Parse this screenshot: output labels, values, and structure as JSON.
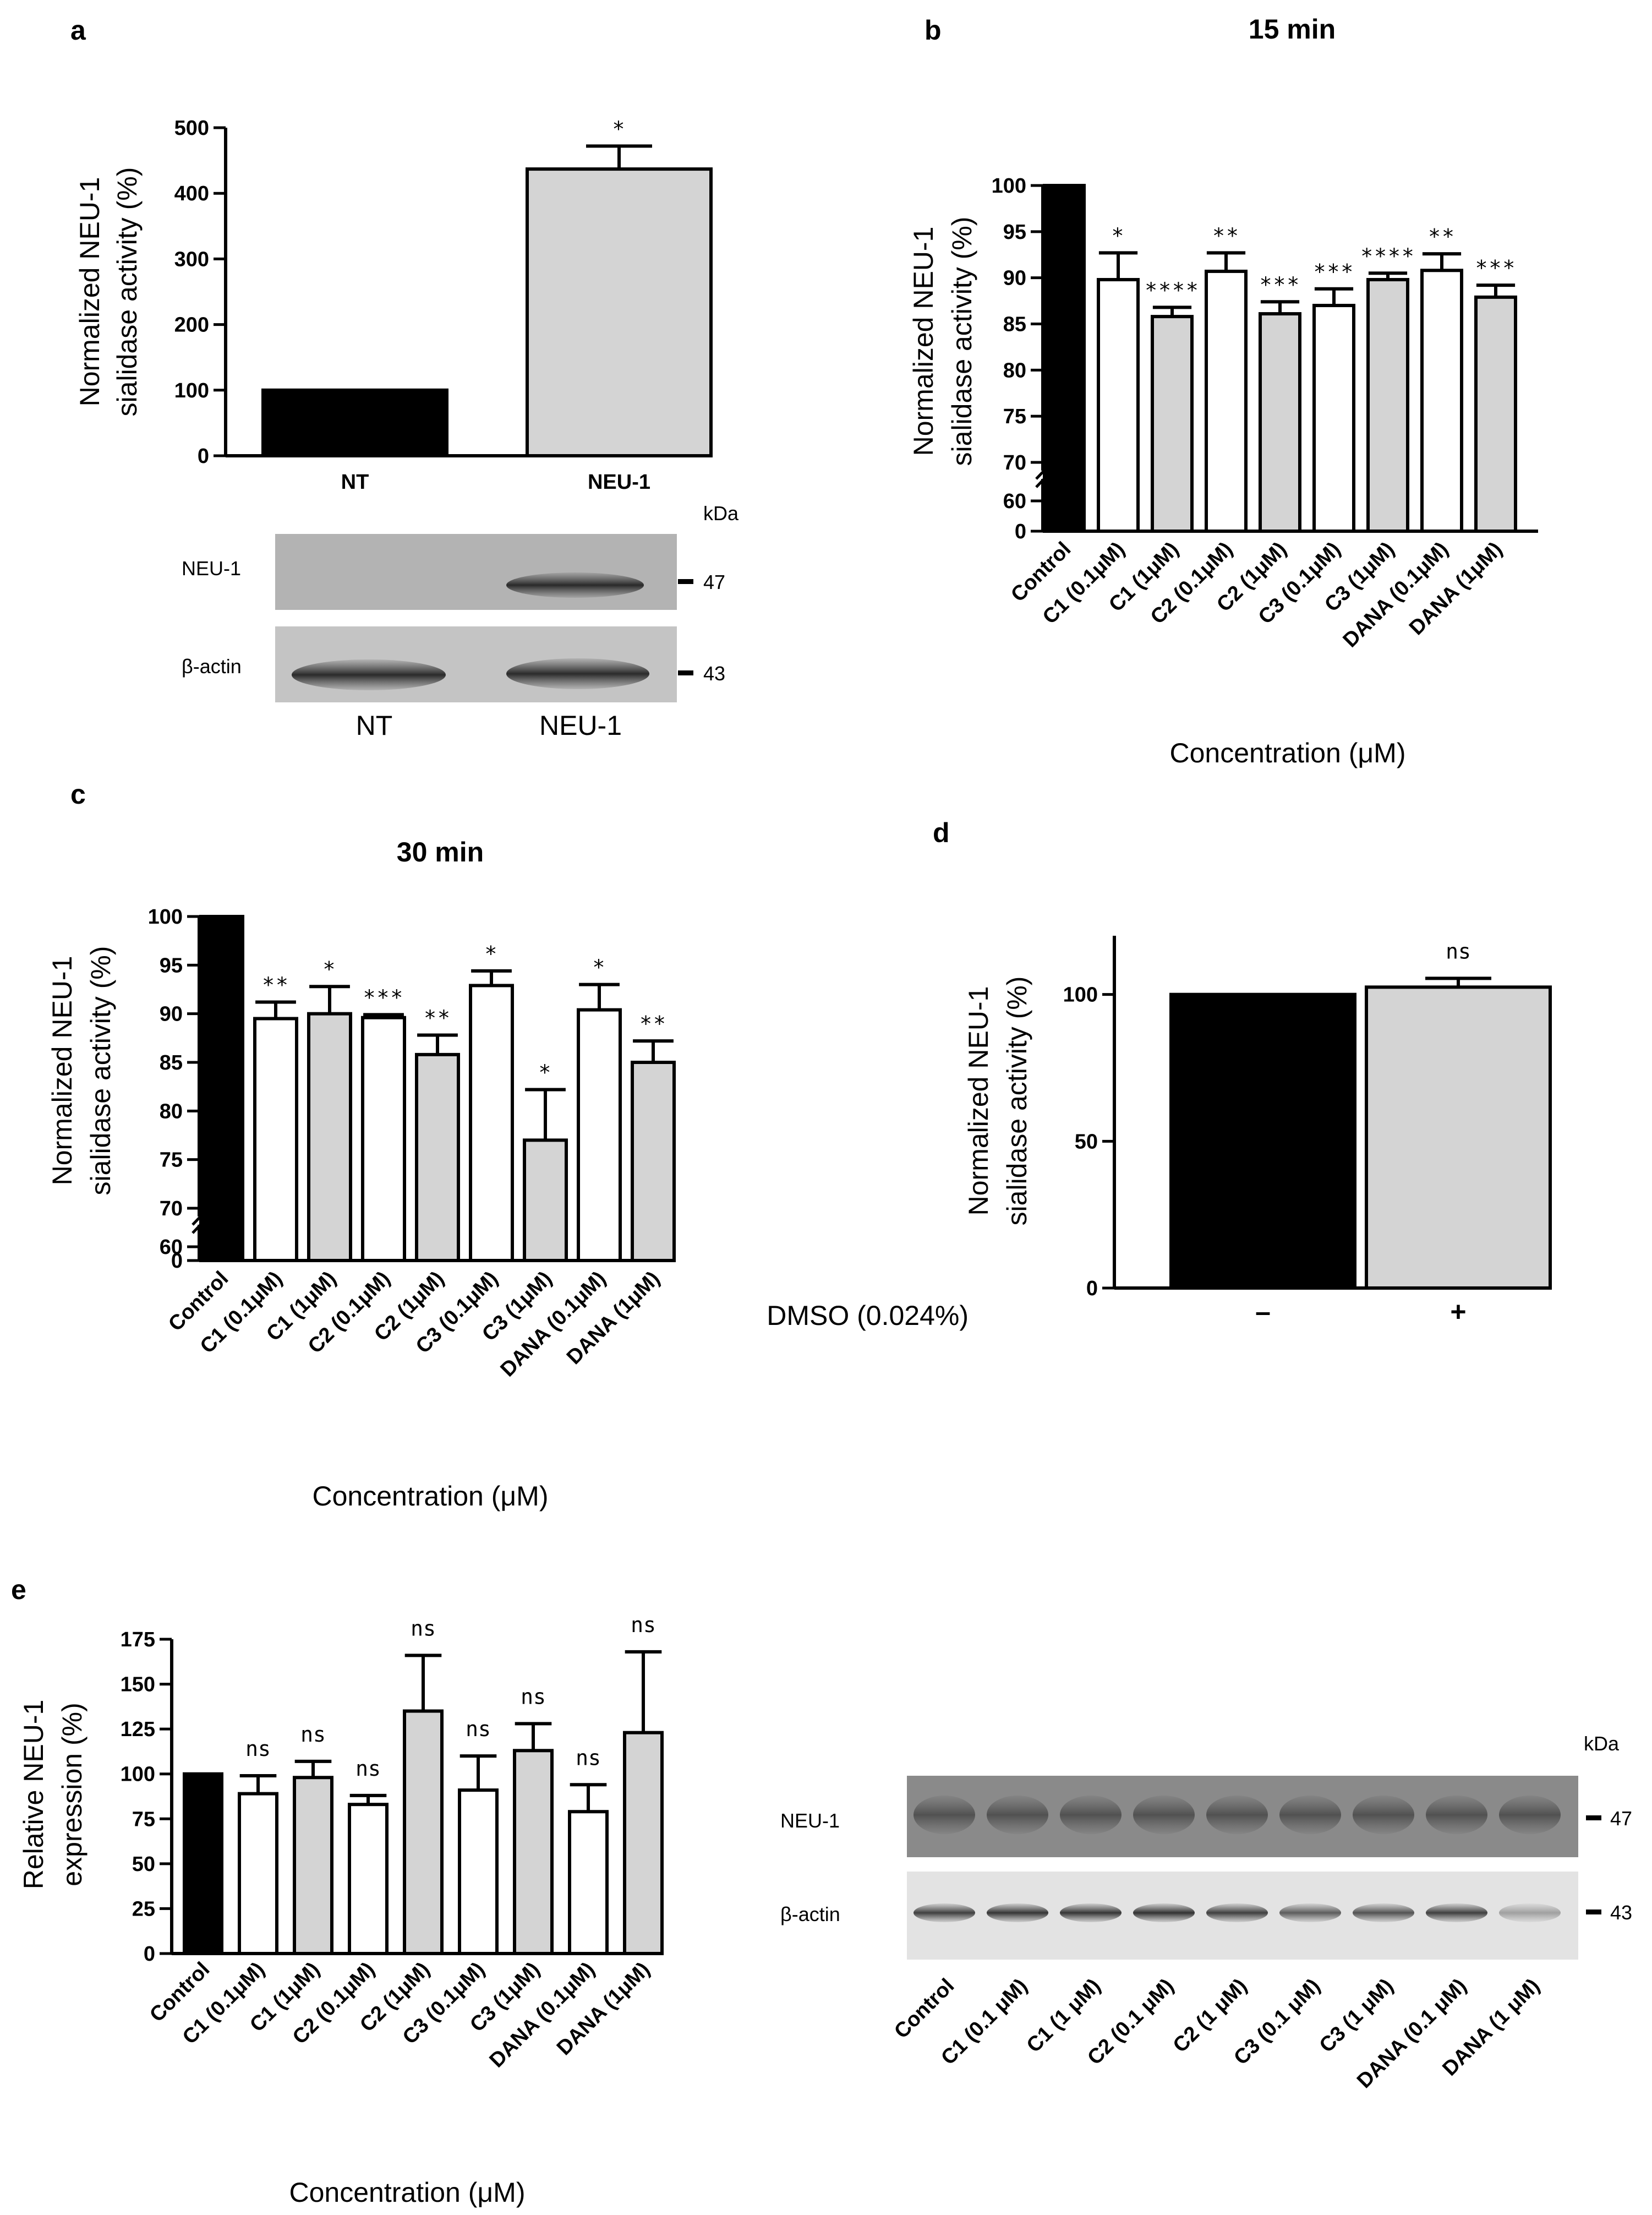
{
  "colors": {
    "control": "#000000",
    "white": "#ffffff",
    "grey": "#d4d4d4"
  },
  "chart_data": [
    {
      "panel": "a",
      "type": "bar",
      "title": "",
      "ylabel": [
        "Normalized NEU-1",
        "sialidase activity (%)"
      ],
      "xlabel": "",
      "ylim": [
        0,
        500
      ],
      "yticks": [
        0,
        100,
        200,
        300,
        400,
        500
      ],
      "categories": [
        "NT",
        "NEU-1"
      ],
      "values": [
        100,
        437
      ],
      "errors": [
        0,
        35
      ],
      "significance": [
        "",
        "*"
      ],
      "fills": [
        "control",
        "grey"
      ],
      "western_blot": {
        "rows": [
          "NEU-1",
          "β-actin"
        ],
        "kda_label": "kDa",
        "markers": [
          "47",
          "43"
        ],
        "lanes": [
          "NT",
          "NEU-1"
        ]
      }
    },
    {
      "panel": "b",
      "type": "bar",
      "title": "15 min",
      "ylabel": [
        "Normalized NEU-1",
        "sialidase activity (%)"
      ],
      "xlabel": "Concentration (μM)",
      "ylim": [
        70,
        100
      ],
      "yticks": [
        70,
        75,
        80,
        85,
        90,
        95,
        100
      ],
      "broken_axis_ticks": [
        0,
        60
      ],
      "categories": [
        "Control",
        "C1 (0.1μM)",
        "C1 (1μM)",
        "C2 (0.1μM)",
        "C2 (1μM)",
        "C3 (0.1μM)",
        "C3 (1μM)",
        "DANA  (0.1μM)",
        "DANA (1μM)"
      ],
      "values": [
        100,
        89.8,
        85.8,
        90.7,
        86.1,
        87.0,
        89.8,
        90.8,
        87.9
      ],
      "errors": [
        0,
        2.9,
        1.0,
        2.0,
        1.3,
        1.8,
        0.7,
        1.8,
        1.3
      ],
      "significance": [
        "",
        "*",
        "****",
        "**",
        "***",
        "***",
        "****",
        "**",
        "***"
      ],
      "fills": [
        "control",
        "white",
        "grey",
        "white",
        "grey",
        "white",
        "grey",
        "white",
        "grey"
      ]
    },
    {
      "panel": "c",
      "type": "bar",
      "title": "30 min",
      "ylabel": [
        "Normalized NEU-1",
        "sialidase activity (%)"
      ],
      "xlabel": "Concentration (μM)",
      "ylim": [
        70,
        100
      ],
      "yticks": [
        70,
        75,
        80,
        85,
        90,
        95,
        100
      ],
      "broken_axis_ticks": [
        0,
        60
      ],
      "categories": [
        "Control",
        "C1 (0.1μM)",
        "C1 (1μM)",
        "C2 (0.1μM)",
        "C2 (1μM)",
        "C3 (0.1μM)",
        "C3 (1μM)",
        "DANA (0.1μM)",
        "DANA (1μM)"
      ],
      "values": [
        100,
        89.5,
        90.0,
        89.6,
        85.8,
        92.9,
        77.0,
        90.4,
        85.0
      ],
      "errors": [
        0,
        1.7,
        2.8,
        0.3,
        2.0,
        1.5,
        5.2,
        2.6,
        2.2
      ],
      "significance": [
        "",
        "**",
        "*",
        "***",
        "**",
        "*",
        "*",
        "*",
        "**"
      ],
      "fills": [
        "control",
        "white",
        "grey",
        "white",
        "grey",
        "white",
        "grey",
        "white",
        "grey"
      ]
    },
    {
      "panel": "d",
      "type": "bar",
      "title": "",
      "ylabel": [
        "Normalized NEU-1",
        "sialidase activity (%)"
      ],
      "xlabel": "",
      "ylim": [
        0,
        120
      ],
      "yticks": [
        0,
        50,
        100
      ],
      "row_label": "DMSO (0.024%)",
      "categories": [
        "–",
        "+"
      ],
      "values": [
        100,
        102.5
      ],
      "errors": [
        0,
        3
      ],
      "significance": [
        "",
        "ns"
      ],
      "fills": [
        "control",
        "grey"
      ]
    },
    {
      "panel": "e",
      "type": "bar",
      "title": "",
      "ylabel": [
        "Relative NEU-1",
        "expression (%)"
      ],
      "xlabel": "Concentration (μM)",
      "ylim": [
        0,
        175
      ],
      "yticks": [
        0,
        25,
        50,
        75,
        100,
        125,
        150,
        175
      ],
      "categories": [
        "Control",
        "C1 (0.1μM)",
        "C1 (1μM)",
        "C2 (0.1μM)",
        "C2 (1μM)",
        "C3 (0.1μM)",
        "C3 (1μM)",
        "DANA (0.1μM)",
        "DANA (1μM)"
      ],
      "values": [
        100,
        89,
        98,
        83,
        135,
        91,
        113,
        79,
        123
      ],
      "errors": [
        0,
        10,
        9,
        5,
        31,
        19,
        15,
        15,
        45
      ],
      "significance": [
        "",
        "ns",
        "ns",
        "ns",
        "ns",
        "ns",
        "ns",
        "ns",
        "ns"
      ],
      "fills": [
        "control",
        "white",
        "grey",
        "white",
        "grey",
        "white",
        "grey",
        "white",
        "grey"
      ],
      "western_blot": {
        "rows": [
          "NEU-1",
          "β-actin"
        ],
        "kda_label": "kDa",
        "markers": [
          "47",
          "43"
        ],
        "lanes": [
          "Control",
          "C1 (0.1 μM)",
          "C1 (1 μM)",
          "C2 (0.1 μM)",
          "C2 (1 μM)",
          "C3 (0.1 μM)",
          "C3 (1 μM)",
          "DANA (0.1 μM)",
          "DANA (1 μM)"
        ],
        "actin_intensity": [
          0.85,
          0.9,
          0.9,
          0.92,
          0.85,
          0.7,
          0.75,
          0.85,
          0.35
        ]
      }
    }
  ]
}
